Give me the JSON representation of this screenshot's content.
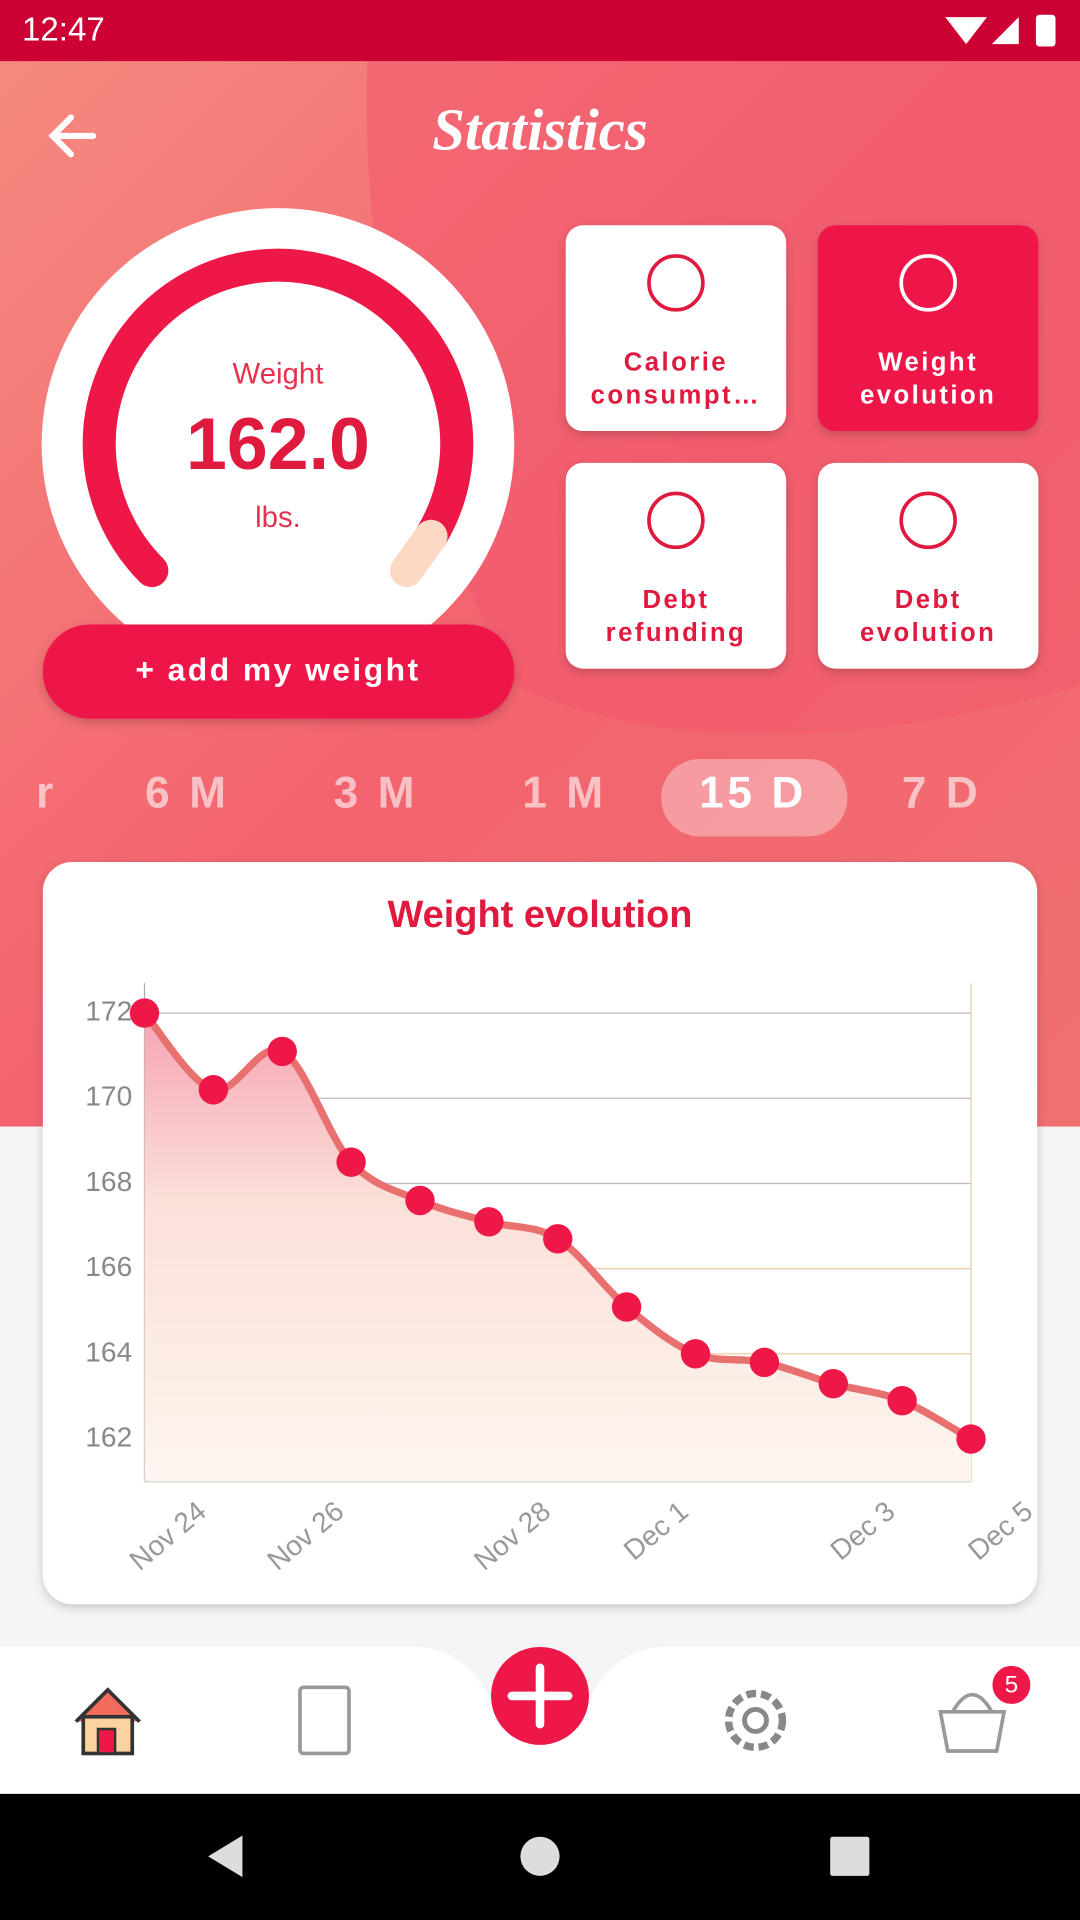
{
  "status_bar": {
    "time": "12:47"
  },
  "header": {
    "title": "Statistics"
  },
  "gauge": {
    "label": "Weight",
    "value": "162.0",
    "unit": "lbs."
  },
  "add_button": "+ add my weight",
  "cards": [
    {
      "lines": [
        "Calorie",
        "consumpt…"
      ],
      "active": false
    },
    {
      "lines": [
        "Weight",
        "evolution"
      ],
      "active": true
    },
    {
      "lines": [
        "Debt",
        "refunding"
      ],
      "active": false
    },
    {
      "lines": [
        "Debt",
        "evolution"
      ],
      "active": false
    }
  ],
  "periods": {
    "items": [
      "r",
      "6 M",
      "3 M",
      "1 M",
      "15 D",
      "7 D"
    ],
    "active": 4
  },
  "chart_data": {
    "type": "line",
    "title": "Weight evolution",
    "categories": [
      "Nov 24",
      null,
      "Nov 26",
      null,
      null,
      "Nov 28",
      null,
      "Dec 1",
      null,
      null,
      "Dec 3",
      null,
      "Dec 5"
    ],
    "values": [
      172,
      170.2,
      171.1,
      168.5,
      167.6,
      167.1,
      166.7,
      165.1,
      164.0,
      163.8,
      163.3,
      162.9,
      162.0
    ],
    "color": "#e8706e",
    "ylim": [
      161,
      172.7
    ],
    "yticks": [
      162,
      164,
      166,
      168,
      170,
      172
    ],
    "grid": true
  },
  "nav": {
    "badge": "5"
  }
}
